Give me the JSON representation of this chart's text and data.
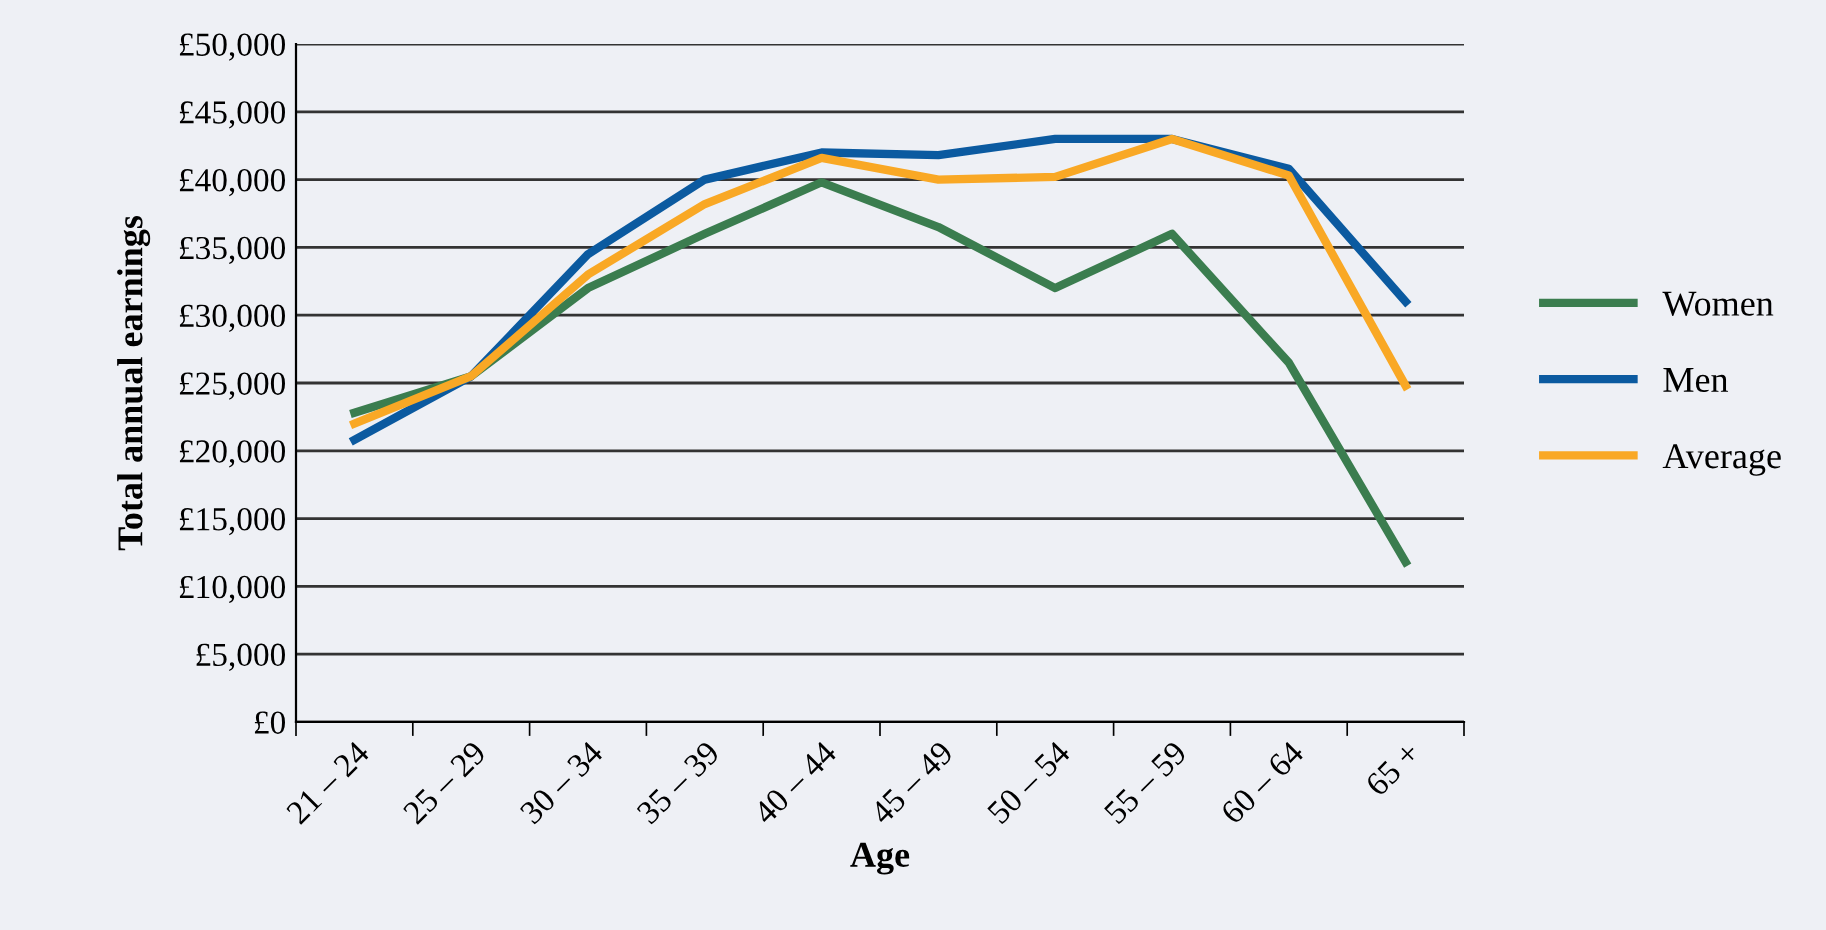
{
  "chart_data": {
    "type": "line",
    "xlabel": "Age",
    "ylabel": "Total annual earnings",
    "categories": [
      "21 – 24",
      "25 – 29",
      "30 – 34",
      "35 – 39",
      "40 – 44",
      "45 – 49",
      "50 – 54",
      "55 – 59",
      "60 – 64",
      "65 +"
    ],
    "series": [
      {
        "name": "Women",
        "color": "#3b7d4f",
        "values": [
          22800,
          25500,
          32000,
          36000,
          39800,
          36500,
          32000,
          36000,
          26500,
          11800
        ]
      },
      {
        "name": "Men",
        "color": "#0b5aa0",
        "values": [
          20800,
          25500,
          34500,
          40000,
          42000,
          41800,
          43000,
          43000,
          40800,
          31000
        ]
      },
      {
        "name": "Average",
        "color": "#f9a825",
        "values": [
          22000,
          25500,
          33000,
          38200,
          41600,
          40000,
          40200,
          43000,
          40300,
          24800
        ]
      }
    ],
    "ylim": [
      0,
      50000
    ],
    "yticks": [
      {
        "value": 0,
        "label": "£0"
      },
      {
        "value": 5000,
        "label": "£5,000"
      },
      {
        "value": 10000,
        "label": "£10,000"
      },
      {
        "value": 15000,
        "label": "£15,000"
      },
      {
        "value": 20000,
        "label": "£20,000"
      },
      {
        "value": 25000,
        "label": "£25,000"
      },
      {
        "value": 30000,
        "label": "£30,000"
      },
      {
        "value": 35000,
        "label": "£35,000"
      },
      {
        "value": 40000,
        "label": "£40,000"
      },
      {
        "value": 45000,
        "label": "£45,000"
      },
      {
        "value": 50000,
        "label": "£50,000"
      }
    ],
    "grid": "y",
    "legend": "right",
    "marker": "none",
    "line_style": "solid"
  }
}
